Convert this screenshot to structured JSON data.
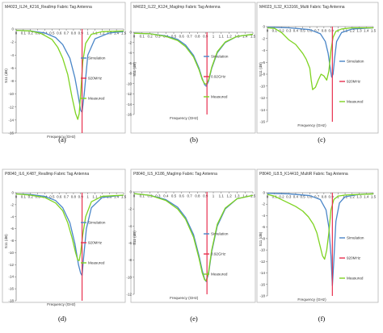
{
  "colors": {
    "simulation": "#4a86c8",
    "marker": "#e8314f",
    "measured": "#7ed321",
    "axis": "#666666",
    "frame": "#b5b5b5"
  },
  "chart_data": [
    {
      "type": "line",
      "label": "(a)",
      "title": "M4023_IL24_K216_Reallmp Fabric Tag Antenna",
      "xlabel": "Frequency (GHz)",
      "ylabel": "S11 (dB)",
      "xlim": [
        0,
        1.5
      ],
      "ylim": [
        -16,
        0
      ],
      "xticks": [
        0,
        0.1,
        0.2,
        0.3,
        0.4,
        0.5,
        0.6,
        0.7,
        0.8,
        0.9,
        1,
        1.1,
        1.2,
        1.3,
        1.4,
        1.5
      ],
      "xtick_labels": [
        "0",
        "0.1",
        "0.2",
        "0.3",
        "0.4",
        "0.5",
        "0.6",
        "0.7",
        "0.8",
        "0.9",
        "1",
        "1.1",
        "1.2",
        "1.3",
        "1.4",
        "1.5"
      ],
      "yticks": [
        0,
        -2,
        -4,
        -6,
        -8,
        -10,
        -12,
        -14,
        -16
      ],
      "ytick_labels": [
        "0",
        "-2",
        "-4",
        "-6",
        "-8",
        "-10",
        "-12",
        "-14",
        "-16"
      ],
      "legend": [
        "Simulation",
        "920MHz",
        "Measured"
      ],
      "marker_freq": 0.92,
      "series": [
        {
          "name": "Simulation",
          "x": [
            0,
            0.2,
            0.4,
            0.55,
            0.65,
            0.75,
            0.82,
            0.87,
            0.9,
            0.92,
            0.95,
            1.0,
            1.1,
            1.3,
            1.5
          ],
          "y": [
            -0.2,
            -0.3,
            -0.6,
            -1.3,
            -2.4,
            -4.5,
            -7.5,
            -10.5,
            -12.5,
            -12.8,
            -10,
            -4,
            -1.5,
            -0.6,
            -0.4
          ]
        },
        {
          "name": "Measured",
          "x": [
            0,
            0.2,
            0.35,
            0.5,
            0.58,
            0.65,
            0.72,
            0.78,
            0.83,
            0.86,
            0.88,
            0.9,
            0.93,
            0.97,
            1.05,
            1.2,
            1.5
          ],
          "y": [
            -0.2,
            -0.3,
            -0.7,
            -1.6,
            -2.8,
            -4.5,
            -7,
            -10.5,
            -13,
            -13.9,
            -13,
            -10,
            -5,
            -2.2,
            -0.8,
            -0.4,
            -0.3
          ]
        }
      ]
    },
    {
      "type": "line",
      "label": "(b)",
      "title": "M4023_IL22_K124_MagImp Fabric Tag Antenna",
      "xlabel": "Frequency (GHz)",
      "ylabel": "S11 (dB)",
      "xlim": [
        0,
        1.5
      ],
      "ylim": [
        -16,
        0
      ],
      "xticks": [
        0,
        0.1,
        0.2,
        0.3,
        0.4,
        0.5,
        0.6,
        0.7,
        0.8,
        0.9,
        1,
        1.1,
        1.2,
        1.3,
        1.4,
        1.5
      ],
      "xtick_labels": [
        "0",
        "0.1",
        "0.2",
        "0.3",
        "0.4",
        "0.5",
        "0.6",
        "0.7",
        "0.8",
        "0.9",
        "1",
        "1.1",
        "1.2",
        "1.3",
        "1.4",
        "1.5"
      ],
      "yticks": [
        0,
        -2,
        -4,
        -6,
        -8,
        -10,
        -12,
        -14,
        -16
      ],
      "ytick_labels": [
        "0",
        "-2",
        "-4",
        "-6",
        "-8",
        "-10",
        "-12",
        "-14",
        "-16"
      ],
      "legend": [
        "Simulation",
        "0.92GHz",
        "Measured"
      ],
      "marker_freq": 0.92,
      "series": [
        {
          "name": "Simulation",
          "x": [
            0,
            0.2,
            0.4,
            0.55,
            0.65,
            0.75,
            0.82,
            0.86,
            0.89,
            0.91,
            0.94,
            0.98,
            1.05,
            1.15,
            1.3,
            1.5
          ],
          "y": [
            -0.2,
            -0.3,
            -0.7,
            -1.4,
            -2.5,
            -4.5,
            -7,
            -9,
            -10.2,
            -10.5,
            -9.5,
            -7,
            -4,
            -2,
            -0.8,
            -0.4
          ]
        },
        {
          "name": "Measured",
          "x": [
            0,
            0.2,
            0.4,
            0.55,
            0.65,
            0.75,
            0.82,
            0.86,
            0.89,
            0.91,
            0.94,
            0.98,
            1.05,
            1.15,
            1.3,
            1.5
          ],
          "y": [
            -0.2,
            -0.3,
            -0.8,
            -1.6,
            -2.8,
            -4.8,
            -7.3,
            -9.2,
            -10,
            -10.1,
            -9.3,
            -6.8,
            -3.8,
            -1.9,
            -0.8,
            -0.4
          ]
        }
      ]
    },
    {
      "type": "line",
      "label": "(c)",
      "title": "M4023_IL32_K13166_Multi Fabric Tag Antenna",
      "xlabel": "Frequency (GHz)",
      "ylabel": "S11 (dB)",
      "xlim": [
        0,
        1.5
      ],
      "ylim": [
        -16,
        0
      ],
      "xticks": [
        0,
        0.1,
        0.2,
        0.3,
        0.4,
        0.5,
        0.6,
        0.7,
        0.8,
        0.9,
        1,
        1.1,
        1.2,
        1.3,
        1.4,
        1.5
      ],
      "xtick_labels": [
        "0",
        "0.1",
        "0.2",
        "0.3",
        "0.4",
        "0.5",
        "0.6",
        "0.7",
        "0.8",
        "0.9",
        "1",
        "1.1",
        "1.2",
        "1.3",
        "1.4",
        "1.5"
      ],
      "yticks": [
        0,
        -2,
        -4,
        -6,
        -8,
        -10,
        -12,
        -14,
        -16
      ],
      "ytick_labels": [
        "0",
        "-2",
        "-4",
        "-6",
        "-8",
        "-10",
        "-12",
        "-14",
        "-16"
      ],
      "legend": [
        "Simulation",
        "920MHz",
        "Measured"
      ],
      "marker_freq": 0.92,
      "series": [
        {
          "name": "Simulation",
          "x": [
            0,
            0.3,
            0.6,
            0.75,
            0.82,
            0.86,
            0.89,
            0.91,
            0.93,
            0.95,
            0.98,
            1.05,
            1.2,
            1.5
          ],
          "y": [
            -0.1,
            -0.2,
            -0.5,
            -1.2,
            -2.5,
            -4.5,
            -7,
            -8.5,
            -8,
            -5.5,
            -2.5,
            -1,
            -0.4,
            -0.2
          ]
        },
        {
          "name": "Measured",
          "x": [
            0,
            0.1,
            0.2,
            0.3,
            0.4,
            0.5,
            0.55,
            0.6,
            0.62,
            0.64,
            0.68,
            0.72,
            0.76,
            0.8,
            0.84,
            0.87,
            0.9,
            0.93,
            0.97,
            1.05,
            1.2,
            1.5
          ],
          "y": [
            -0.2,
            -0.3,
            -1,
            -2.2,
            -3,
            -4.5,
            -5.5,
            -7,
            -9,
            -10.6,
            -10.2,
            -9,
            -8,
            -8.3,
            -9,
            -7.5,
            -4,
            -1.8,
            -0.8,
            -0.4,
            -0.2,
            -0.2
          ]
        }
      ]
    },
    {
      "type": "line",
      "label": "(d)",
      "title": "P8040_IL6_K487_Reallmp Fabric Tag Antenna",
      "xlabel": "Frequency (GHz)",
      "ylabel": "S11 (dB)",
      "xlim": [
        0,
        1.5
      ],
      "ylim": [
        -18,
        0
      ],
      "xticks": [
        0,
        0.1,
        0.2,
        0.3,
        0.4,
        0.5,
        0.6,
        0.7,
        0.8,
        0.9,
        1,
        1.1,
        1.2,
        1.3,
        1.4,
        1.5
      ],
      "xtick_labels": [
        "0",
        "0.1",
        "0.2",
        "0.3",
        "0.4",
        "0.5",
        "0.6",
        "0.7",
        "0.8",
        "0.9",
        "1",
        "1.1",
        "1.2",
        "1.3",
        "1.4",
        "1.5"
      ],
      "yticks": [
        0,
        -2,
        -4,
        -6,
        -8,
        -10,
        -12,
        -14,
        -16,
        -18
      ],
      "ytick_labels": [
        "0",
        "-2",
        "-4",
        "-6",
        "-8",
        "-10",
        "-12",
        "-14",
        "-16",
        "-18"
      ],
      "legend": [
        "Simulation",
        "920MHz",
        "Measured"
      ],
      "marker_freq": 0.92,
      "series": [
        {
          "name": "Simulation",
          "x": [
            0,
            0.2,
            0.4,
            0.55,
            0.65,
            0.75,
            0.82,
            0.87,
            0.9,
            0.92,
            0.94,
            0.98,
            1.05,
            1.2,
            1.5
          ],
          "y": [
            -0.2,
            -0.3,
            -0.6,
            -1.3,
            -2.5,
            -5,
            -8.5,
            -12,
            -13.4,
            -13.8,
            -11,
            -6,
            -2.5,
            -0.8,
            -0.4
          ]
        },
        {
          "name": "Measured",
          "x": [
            0,
            0.2,
            0.4,
            0.55,
            0.65,
            0.72,
            0.78,
            0.83,
            0.86,
            0.88,
            0.9,
            0.93,
            0.97,
            1.05,
            1.2,
            1.5
          ],
          "y": [
            -0.2,
            -0.4,
            -0.8,
            -1.7,
            -3,
            -5,
            -7.5,
            -10,
            -11.2,
            -11.3,
            -10,
            -7,
            -4,
            -1.5,
            -0.6,
            -0.4
          ]
        }
      ]
    },
    {
      "type": "line",
      "label": "(e)",
      "title": "P8040_IL5_K186_MagImp Fabric Tag Antenna",
      "xlabel": "Frequency (GHz)",
      "ylabel": "S11 (dB)",
      "xlim": [
        0,
        1.5
      ],
      "ylim": [
        -12,
        0
      ],
      "xticks": [
        0,
        0.1,
        0.2,
        0.3,
        0.4,
        0.5,
        0.6,
        0.7,
        0.8,
        0.9,
        1,
        1.1,
        1.2,
        1.3,
        1.4,
        1.5
      ],
      "xtick_labels": [
        "0",
        "0.1",
        "0.2",
        "0.3",
        "0.4",
        "0.5",
        "0.6",
        "0.7",
        "0.8",
        "0.9",
        "1",
        "1.1",
        "1.2",
        "1.3",
        "1.4",
        "1.5"
      ],
      "yticks": [
        0,
        -2,
        -4,
        -6,
        -8,
        -10,
        -12
      ],
      "ytick_labels": [
        "0",
        "-2",
        "-4",
        "-6",
        "-8",
        "-10",
        "-12"
      ],
      "legend": [
        "Simulation",
        "0.92GHz",
        "Measured"
      ],
      "marker_freq": 0.92,
      "series": [
        {
          "name": "Simulation",
          "x": [
            0,
            0.2,
            0.4,
            0.55,
            0.65,
            0.75,
            0.82,
            0.86,
            0.89,
            0.91,
            0.94,
            0.98,
            1.05,
            1.15,
            1.3,
            1.5
          ],
          "y": [
            -0.2,
            -0.4,
            -0.9,
            -1.8,
            -3,
            -5,
            -7.5,
            -9.2,
            -10.2,
            -10.5,
            -9.6,
            -7,
            -4,
            -2,
            -0.8,
            -0.4
          ]
        },
        {
          "name": "Measured",
          "x": [
            0,
            0.2,
            0.4,
            0.55,
            0.65,
            0.75,
            0.82,
            0.86,
            0.89,
            0.91,
            0.94,
            0.98,
            1.05,
            1.15,
            1.3,
            1.5
          ],
          "y": [
            -0.2,
            -0.4,
            -1,
            -2,
            -3.2,
            -5.3,
            -7.8,
            -9.5,
            -10.3,
            -10.4,
            -9.4,
            -6.8,
            -3.8,
            -1.9,
            -0.8,
            -0.4
          ]
        }
      ]
    },
    {
      "type": "line",
      "label": "(f)",
      "title": "P8040_IL8.5_K14410_MultiR Fabric Tag Antenna",
      "xlabel": "Frequency (GHz)",
      "ylabel": "S11 (dB)",
      "xlim": [
        0,
        1.5
      ],
      "ylim": [
        -18,
        0
      ],
      "xticks": [
        0,
        0.1,
        0.2,
        0.3,
        0.4,
        0.5,
        0.6,
        0.7,
        0.8,
        0.9,
        1,
        1.1,
        1.2,
        1.3,
        1.4,
        1.5
      ],
      "xtick_labels": [
        "0",
        "0.1",
        "0.2",
        "0.3",
        "0.4",
        "0.5",
        "0.6",
        "0.7",
        "0.8",
        "0.9",
        "1",
        "1.1",
        "1.2",
        "1.3",
        "1.4",
        "1.5"
      ],
      "yticks": [
        0,
        -2,
        -4,
        -6,
        -8,
        -10,
        -12,
        -14,
        -16,
        -18
      ],
      "ytick_labels": [
        "0",
        "-2",
        "-4",
        "-6",
        "-8",
        "-10",
        "-12",
        "-14",
        "-16",
        "-18"
      ],
      "legend": [
        "Simulation",
        "920MHz",
        "Measured"
      ],
      "marker_freq": 0.92,
      "series": [
        {
          "name": "Simulation",
          "x": [
            0,
            0.3,
            0.6,
            0.75,
            0.83,
            0.87,
            0.9,
            0.92,
            0.94,
            0.97,
            1.02,
            1.1,
            1.3,
            1.5
          ],
          "y": [
            -0.1,
            -0.2,
            -0.5,
            -1.2,
            -3,
            -6,
            -11,
            -16.2,
            -12,
            -5,
            -1.8,
            -0.7,
            -0.3,
            -0.2
          ]
        },
        {
          "name": "Measured",
          "x": [
            0,
            0.1,
            0.2,
            0.3,
            0.4,
            0.5,
            0.58,
            0.65,
            0.7,
            0.74,
            0.78,
            0.81,
            0.84,
            0.87,
            0.9,
            0.94,
            1.0,
            1.1,
            1.3,
            1.5
          ],
          "y": [
            -0.3,
            -0.6,
            -1.2,
            -1.8,
            -2.4,
            -3.2,
            -4.2,
            -5.5,
            -7,
            -9,
            -11,
            -11.6,
            -10,
            -7,
            -3,
            -1.2,
            -0.6,
            -0.4,
            -0.3,
            -0.2
          ]
        }
      ]
    }
  ]
}
